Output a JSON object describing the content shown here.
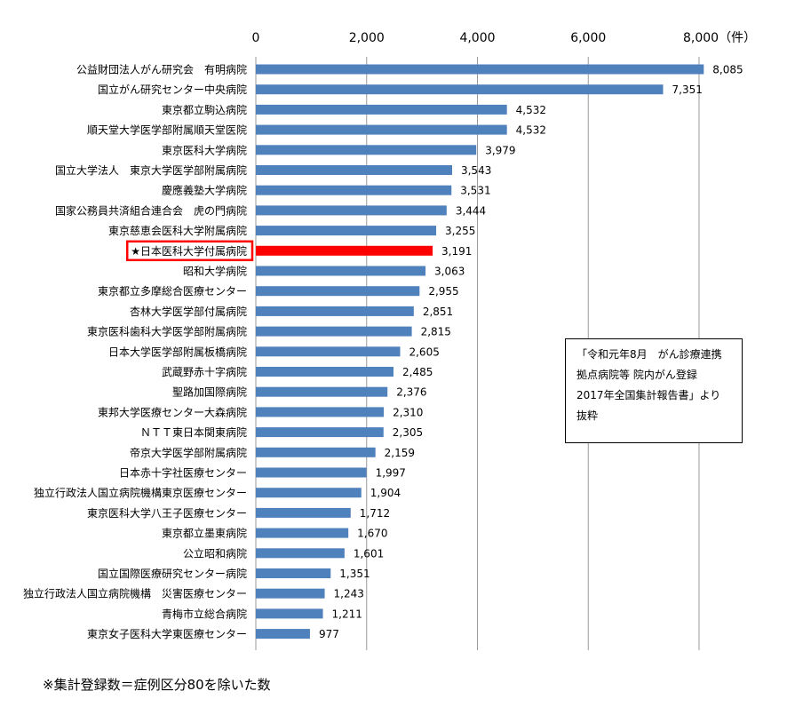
{
  "chart_data": {
    "type": "bar",
    "orientation": "horizontal",
    "categories": [
      "公益財団法人がん研究会　有明病院",
      "国立がん研究センター中央病院",
      "東京都立駒込病院",
      "順天堂大学医学部附属順天堂医院",
      "東京医科大学病院",
      "国立大学法人　東京大学医学部附属病院",
      "慶應義塾大学病院",
      "国家公務員共済組合連合会　虎の門病院",
      "東京慈恵会医科大学附属病院",
      "★日本医科大学付属病院",
      "昭和大学病院",
      "東京都立多摩総合医療センター",
      "杏林大学医学部付属病院",
      "東京医科歯科大学医学部附属病院",
      "日本大学医学部附属板橋病院",
      "武蔵野赤十字病院",
      "聖路加国際病院",
      "東邦大学医療センター大森病院",
      "ＮＴＴ東日本関東病院",
      "帝京大学医学部附属病院",
      "日本赤十字社医療センター",
      "独立行政法人国立病院機構東京医療センター",
      "東京医科大学八王子医療センター",
      "東京都立墨東病院",
      "公立昭和病院",
      "国立国際医療研究センター病院",
      "独立行政法人国立病院機構　災害医療センター",
      "青梅市立総合病院",
      "東京女子医科大学東医療センター"
    ],
    "values": [
      8085,
      7351,
      4532,
      4532,
      3979,
      3543,
      3531,
      3444,
      3255,
      3191,
      3063,
      2955,
      2851,
      2815,
      2605,
      2485,
      2376,
      2310,
      2305,
      2159,
      1997,
      1904,
      1712,
      1670,
      1601,
      1351,
      1243,
      1211,
      977
    ],
    "value_labels": [
      "8,085",
      "7,351",
      "4,532",
      "4,532",
      "3,979",
      "3,543",
      "3,531",
      "3,444",
      "3,255",
      "3,191",
      "3,063",
      "2,955",
      "2,851",
      "2,815",
      "2,605",
      "2,485",
      "2,376",
      "2,310",
      "2,305",
      "2,159",
      "1,997",
      "1,904",
      "1,712",
      "1,670",
      "1,601",
      "1,351",
      "1,243",
      "1,211",
      "977"
    ],
    "highlight_index": 9,
    "xlim": [
      0,
      9000
    ],
    "xticks": [
      0,
      2000,
      4000,
      6000,
      8000
    ],
    "xtick_labels": [
      "0",
      "2,000",
      "4,000",
      "6,000",
      "8,000（件）"
    ],
    "axis_position": "top",
    "grid": true,
    "colors": {
      "bar": "#4f81bd",
      "highlight": "#ff0000",
      "grid": "#9a9a9a"
    }
  },
  "note_lines": [
    "「令和元年8月　がん診療連携",
    "拠点病院等 院内がん登録",
    "2017年全国集計報告書」より",
    "抜粋"
  ],
  "footnote": "※集計登録数＝症例区分80を除いた数"
}
